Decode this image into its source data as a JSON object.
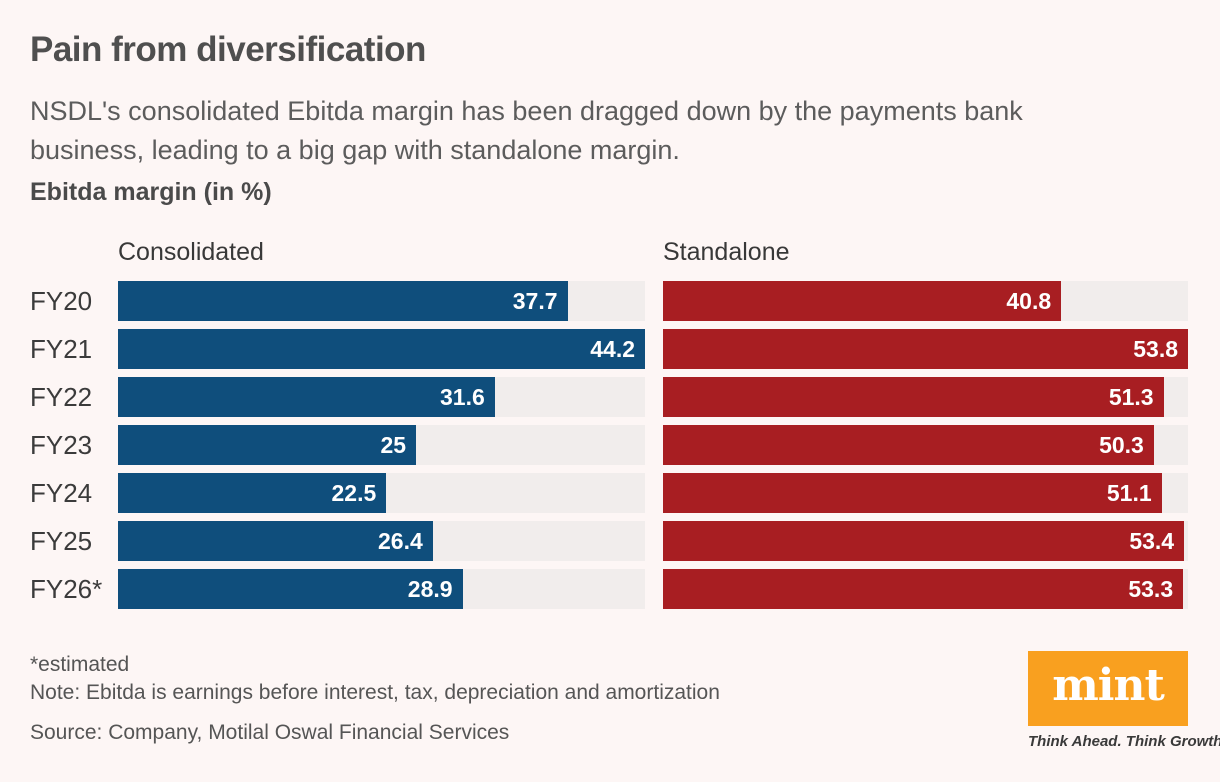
{
  "page": {
    "background": "#fdf6f5",
    "title": "Pain from diversification",
    "subtitle_lines": [
      "NSDL's consolidated Ebitda margin has been dragged down by the payments bank",
      "business, leading to a big gap with standalone margin."
    ],
    "chart_label": "Ebitda margin (in %)"
  },
  "chart_data": {
    "type": "bar",
    "orientation": "horizontal",
    "title": "Ebitda margin (in %)",
    "categories": [
      "FY20",
      "FY21",
      "FY22",
      "FY23",
      "FY24",
      "FY25",
      "FY26*"
    ],
    "series": [
      {
        "name": "Consolidated",
        "color": "#0f4e7c",
        "axis_max": 44.2,
        "values": [
          37.7,
          44.2,
          31.6,
          25,
          22.5,
          26.4,
          28.9
        ]
      },
      {
        "name": "Standalone",
        "color": "#a81e22",
        "axis_max": 53.8,
        "values": [
          40.8,
          53.8,
          51.3,
          50.3,
          51.1,
          53.4,
          53.3
        ]
      }
    ],
    "track_color": "#f1edec",
    "value_label_color": "#ffffff",
    "grid": false,
    "legend_position": "column-headers"
  },
  "footer": {
    "estimated_note": "*estimated",
    "note": "Note: Ebitda is earnings before interest, tax, depreciation and amortization",
    "source": "Source: Company, Motilal Oswal Financial Services"
  },
  "branding": {
    "logo_text": "mint",
    "logo_bg": "#f9a01f",
    "tagline": "Think Ahead. Think Growth."
  }
}
